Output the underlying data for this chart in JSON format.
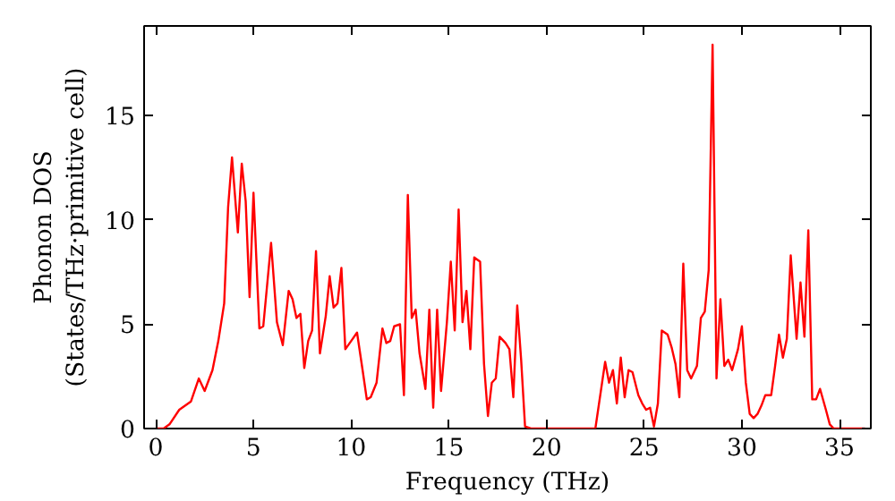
{
  "chart_data": {
    "type": "line",
    "xlabel": "Frequency (THz)",
    "ylabel": "Phonon DOS\n(States/THz·primitive cell)",
    "xlim": [
      -0.6,
      36.6
    ],
    "ylim": [
      0,
      19.3
    ],
    "xticks": [
      0,
      5,
      10,
      15,
      20,
      25,
      30,
      35
    ],
    "yticks": [
      0,
      5,
      10,
      15
    ],
    "grid": false,
    "marker": "none",
    "line_style": "solid",
    "series": [
      {
        "color": "#ff0000",
        "x": [
          0,
          0.4,
          0.7,
          1.2,
          1.8,
          2.2,
          2.5,
          2.9,
          3.2,
          3.5,
          3.7,
          3.9,
          4.2,
          4.4,
          4.6,
          4.8,
          5.0,
          5.3,
          5.5,
          5.9,
          6.2,
          6.5,
          6.8,
          7.0,
          7.2,
          7.4,
          7.6,
          7.8,
          8.0,
          8.2,
          8.4,
          8.7,
          8.9,
          9.1,
          9.3,
          9.5,
          9.7,
          10.0,
          10.3,
          10.6,
          10.8,
          11.0,
          11.3,
          11.6,
          11.8,
          12.0,
          12.2,
          12.5,
          12.7,
          12.9,
          13.1,
          13.3,
          13.5,
          13.8,
          14.0,
          14.2,
          14.4,
          14.6,
          14.9,
          15.1,
          15.3,
          15.5,
          15.7,
          15.9,
          16.1,
          16.3,
          16.6,
          16.8,
          17.0,
          17.2,
          17.4,
          17.6,
          17.9,
          18.1,
          18.3,
          18.5,
          18.7,
          18.9,
          19.2,
          20.4,
          22.5,
          23.0,
          23.2,
          23.4,
          23.6,
          23.8,
          24.0,
          24.2,
          24.4,
          24.7,
          24.9,
          25.1,
          25.3,
          25.5,
          25.7,
          25.9,
          26.2,
          26.4,
          26.6,
          26.8,
          27.0,
          27.2,
          27.4,
          27.7,
          27.9,
          28.1,
          28.3,
          28.5,
          28.7,
          28.9,
          29.1,
          29.3,
          29.5,
          29.8,
          30.0,
          30.2,
          30.4,
          30.6,
          30.8,
          31.0,
          31.2,
          31.5,
          31.7,
          31.9,
          32.1,
          32.3,
          32.5,
          32.8,
          33.0,
          33.2,
          33.4,
          33.6,
          33.8,
          34.0,
          34.3,
          34.5,
          34.7,
          36.3
        ],
        "values": [
          0,
          0,
          0.2,
          0.9,
          1.3,
          2.4,
          1.8,
          2.8,
          4.2,
          6.0,
          10.6,
          13.0,
          9.4,
          12.7,
          10.9,
          6.3,
          11.3,
          4.8,
          4.9,
          8.9,
          5.1,
          4.0,
          6.6,
          6.2,
          5.3,
          5.5,
          2.9,
          4.2,
          4.7,
          8.5,
          3.6,
          5.4,
          7.3,
          5.8,
          6.0,
          7.7,
          3.8,
          4.2,
          4.6,
          2.7,
          1.4,
          1.5,
          2.2,
          4.8,
          4.1,
          4.2,
          4.9,
          5.0,
          1.6,
          11.2,
          5.3,
          5.7,
          3.6,
          1.9,
          5.7,
          1.0,
          5.7,
          1.8,
          5.1,
          8.0,
          4.7,
          10.5,
          5.1,
          6.6,
          3.8,
          8.2,
          8.0,
          3.1,
          0.6,
          2.2,
          2.4,
          4.4,
          4.1,
          3.8,
          1.5,
          5.9,
          3.3,
          0.1,
          0,
          0,
          0,
          3.2,
          2.2,
          2.8,
          1.2,
          3.4,
          1.5,
          2.8,
          2.7,
          1.6,
          1.2,
          0.9,
          1.0,
          0.1,
          1.2,
          4.7,
          4.5,
          3.9,
          3.1,
          1.5,
          7.9,
          2.8,
          2.4,
          3.0,
          5.3,
          5.6,
          7.6,
          18.4,
          2.4,
          6.2,
          3.0,
          3.3,
          2.8,
          3.8,
          4.9,
          2.2,
          0.7,
          0.5,
          0.7,
          1.1,
          1.6,
          1.6,
          3.0,
          4.5,
          3.4,
          4.3,
          8.3,
          4.3,
          7.0,
          4.4,
          9.5,
          1.4,
          1.4,
          1.9,
          0.9,
          0.2,
          0,
          0
        ]
      }
    ]
  }
}
